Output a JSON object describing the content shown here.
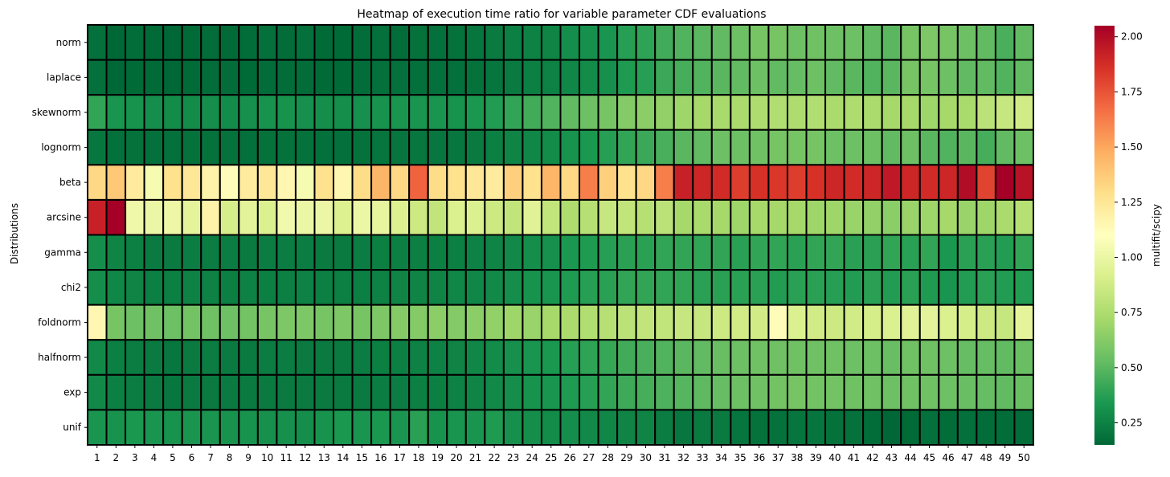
{
  "chart_data": {
    "type": "heatmap",
    "title": "Heatmap of execution time ratio for variable parameter CDF evaluations",
    "xlabel": "",
    "ylabel": "Distributions",
    "colorbar_label": "multifit/scipy",
    "colormap": "RdYlGn_r",
    "colorbar_range": [
      0.15,
      2.05
    ],
    "colorbar_ticks": [
      "0.25",
      "0.50",
      "0.75",
      "1.00",
      "1.25",
      "1.50",
      "1.75",
      "2.00"
    ],
    "x_categories": [
      "1",
      "2",
      "3",
      "4",
      "5",
      "6",
      "7",
      "8",
      "9",
      "10",
      "11",
      "12",
      "13",
      "14",
      "15",
      "16",
      "17",
      "18",
      "19",
      "20",
      "21",
      "22",
      "23",
      "24",
      "25",
      "26",
      "27",
      "28",
      "29",
      "30",
      "31",
      "32",
      "33",
      "34",
      "35",
      "36",
      "37",
      "38",
      "39",
      "40",
      "41",
      "42",
      "43",
      "44",
      "45",
      "46",
      "47",
      "48",
      "49",
      "50"
    ],
    "y_categories": [
      "norm",
      "laplace",
      "skewnorm",
      "lognorm",
      "beta",
      "arcsine",
      "gamma",
      "chi2",
      "foldnorm",
      "halfnorm",
      "exp",
      "unif"
    ],
    "values": [
      [
        0.18,
        0.15,
        0.17,
        0.16,
        0.15,
        0.16,
        0.17,
        0.16,
        0.17,
        0.18,
        0.17,
        0.18,
        0.16,
        0.16,
        0.17,
        0.18,
        0.17,
        0.19,
        0.18,
        0.19,
        0.2,
        0.22,
        0.24,
        0.25,
        0.26,
        0.3,
        0.31,
        0.33,
        0.37,
        0.39,
        0.44,
        0.48,
        0.5,
        0.52,
        0.55,
        0.58,
        0.58,
        0.55,
        0.56,
        0.55,
        0.55,
        0.52,
        0.5,
        0.58,
        0.6,
        0.58,
        0.55,
        0.52,
        0.46,
        0.52
      ],
      [
        0.18,
        0.15,
        0.16,
        0.16,
        0.15,
        0.16,
        0.17,
        0.17,
        0.16,
        0.17,
        0.17,
        0.17,
        0.16,
        0.16,
        0.17,
        0.18,
        0.18,
        0.18,
        0.18,
        0.18,
        0.19,
        0.2,
        0.22,
        0.24,
        0.25,
        0.27,
        0.29,
        0.31,
        0.35,
        0.37,
        0.42,
        0.45,
        0.48,
        0.5,
        0.52,
        0.55,
        0.52,
        0.53,
        0.55,
        0.52,
        0.5,
        0.48,
        0.5,
        0.58,
        0.58,
        0.55,
        0.52,
        0.52,
        0.48,
        0.52
      ],
      [
        0.4,
        0.33,
        0.32,
        0.3,
        0.29,
        0.29,
        0.3,
        0.29,
        0.31,
        0.32,
        0.32,
        0.31,
        0.3,
        0.3,
        0.31,
        0.32,
        0.33,
        0.33,
        0.33,
        0.32,
        0.34,
        0.36,
        0.4,
        0.44,
        0.48,
        0.52,
        0.55,
        0.58,
        0.62,
        0.64,
        0.66,
        0.7,
        0.72,
        0.73,
        0.74,
        0.75,
        0.76,
        0.75,
        0.76,
        0.74,
        0.75,
        0.74,
        0.72,
        0.72,
        0.7,
        0.72,
        0.73,
        0.8,
        0.84,
        0.88
      ],
      [
        0.21,
        0.18,
        0.19,
        0.18,
        0.18,
        0.19,
        0.19,
        0.19,
        0.18,
        0.19,
        0.19,
        0.19,
        0.18,
        0.18,
        0.19,
        0.2,
        0.2,
        0.21,
        0.21,
        0.21,
        0.22,
        0.24,
        0.26,
        0.27,
        0.29,
        0.32,
        0.34,
        0.37,
        0.4,
        0.42,
        0.46,
        0.5,
        0.52,
        0.55,
        0.55,
        0.56,
        0.58,
        0.58,
        0.58,
        0.55,
        0.55,
        0.55,
        0.52,
        0.55,
        0.5,
        0.48,
        0.5,
        0.45,
        0.52,
        0.55
      ],
      [
        1.32,
        1.38,
        1.22,
        1.05,
        1.28,
        1.25,
        1.18,
        1.12,
        1.22,
        1.25,
        1.15,
        1.05,
        1.28,
        1.15,
        1.3,
        1.45,
        1.32,
        1.7,
        1.3,
        1.28,
        1.25,
        1.22,
        1.35,
        1.28,
        1.45,
        1.32,
        1.62,
        1.35,
        1.28,
        1.32,
        1.62,
        1.92,
        1.9,
        1.88,
        1.82,
        1.86,
        1.84,
        1.82,
        1.86,
        1.9,
        1.88,
        1.9,
        1.95,
        1.9,
        1.88,
        1.9,
        2.0,
        1.8,
        2.05,
        1.98
      ],
      [
        1.92,
        2.05,
        1.02,
        1.0,
        1.01,
        0.97,
        1.18,
        0.9,
        0.96,
        0.92,
        1.03,
        1.0,
        1.0,
        0.93,
        1.0,
        0.98,
        0.93,
        0.86,
        0.82,
        0.92,
        0.92,
        0.86,
        0.82,
        0.95,
        0.82,
        0.75,
        0.78,
        0.84,
        0.82,
        0.78,
        0.8,
        0.72,
        0.73,
        0.72,
        0.7,
        0.72,
        0.72,
        0.72,
        0.7,
        0.7,
        0.68,
        0.66,
        0.64,
        0.68,
        0.7,
        0.72,
        0.68,
        0.7,
        0.74,
        0.78
      ],
      [
        0.3,
        0.26,
        0.24,
        0.22,
        0.22,
        0.23,
        0.23,
        0.23,
        0.22,
        0.23,
        0.23,
        0.23,
        0.22,
        0.22,
        0.23,
        0.24,
        0.24,
        0.24,
        0.24,
        0.24,
        0.25,
        0.26,
        0.28,
        0.3,
        0.31,
        0.34,
        0.35,
        0.37,
        0.38,
        0.38,
        0.4,
        0.4,
        0.4,
        0.4,
        0.38,
        0.4,
        0.4,
        0.38,
        0.4,
        0.4,
        0.38,
        0.38,
        0.4,
        0.38,
        0.4,
        0.34,
        0.38,
        0.38,
        0.36,
        0.4
      ],
      [
        0.3,
        0.27,
        0.26,
        0.24,
        0.24,
        0.25,
        0.25,
        0.24,
        0.25,
        0.24,
        0.24,
        0.25,
        0.24,
        0.24,
        0.24,
        0.25,
        0.26,
        0.26,
        0.26,
        0.27,
        0.27,
        0.28,
        0.3,
        0.32,
        0.33,
        0.35,
        0.37,
        0.38,
        0.4,
        0.4,
        0.4,
        0.4,
        0.38,
        0.38,
        0.38,
        0.38,
        0.36,
        0.38,
        0.38,
        0.37,
        0.36,
        0.38,
        0.36,
        0.38,
        0.35,
        0.33,
        0.36,
        0.38,
        0.36,
        0.36
      ],
      [
        1.15,
        0.58,
        0.55,
        0.56,
        0.55,
        0.57,
        0.56,
        0.55,
        0.57,
        0.58,
        0.6,
        0.6,
        0.58,
        0.6,
        0.58,
        0.6,
        0.62,
        0.62,
        0.64,
        0.62,
        0.64,
        0.66,
        0.7,
        0.68,
        0.72,
        0.74,
        0.76,
        0.78,
        0.8,
        0.82,
        0.82,
        0.84,
        0.84,
        0.86,
        0.88,
        0.88,
        1.12,
        0.92,
        0.88,
        0.86,
        0.88,
        0.9,
        0.92,
        0.95,
        0.96,
        0.92,
        0.9,
        0.86,
        0.84,
        0.97
      ],
      [
        0.28,
        0.24,
        0.23,
        0.22,
        0.21,
        0.22,
        0.23,
        0.22,
        0.22,
        0.23,
        0.23,
        0.22,
        0.22,
        0.22,
        0.23,
        0.24,
        0.24,
        0.25,
        0.25,
        0.26,
        0.27,
        0.29,
        0.31,
        0.33,
        0.34,
        0.37,
        0.39,
        0.41,
        0.44,
        0.46,
        0.48,
        0.5,
        0.52,
        0.54,
        0.55,
        0.56,
        0.56,
        0.56,
        0.56,
        0.56,
        0.55,
        0.55,
        0.54,
        0.56,
        0.56,
        0.55,
        0.53,
        0.53,
        0.52,
        0.54
      ],
      [
        0.28,
        0.24,
        0.23,
        0.22,
        0.21,
        0.22,
        0.22,
        0.22,
        0.22,
        0.22,
        0.22,
        0.22,
        0.22,
        0.22,
        0.22,
        0.23,
        0.23,
        0.24,
        0.24,
        0.25,
        0.26,
        0.28,
        0.3,
        0.32,
        0.33,
        0.35,
        0.37,
        0.4,
        0.43,
        0.45,
        0.47,
        0.49,
        0.51,
        0.53,
        0.55,
        0.56,
        0.57,
        0.58,
        0.57,
        0.57,
        0.56,
        0.56,
        0.55,
        0.56,
        0.56,
        0.55,
        0.54,
        0.53,
        0.52,
        0.54
      ],
      [
        0.33,
        0.32,
        0.34,
        0.33,
        0.32,
        0.33,
        0.33,
        0.32,
        0.32,
        0.31,
        0.31,
        0.3,
        0.32,
        0.34,
        0.33,
        0.34,
        0.33,
        0.38,
        0.32,
        0.33,
        0.33,
        0.35,
        0.31,
        0.3,
        0.29,
        0.3,
        0.28,
        0.27,
        0.26,
        0.26,
        0.23,
        0.21,
        0.22,
        0.22,
        0.2,
        0.19,
        0.19,
        0.2,
        0.2,
        0.19,
        0.19,
        0.17,
        0.15,
        0.16,
        0.18,
        0.17,
        0.18,
        0.17,
        0.17,
        0.17
      ]
    ]
  }
}
